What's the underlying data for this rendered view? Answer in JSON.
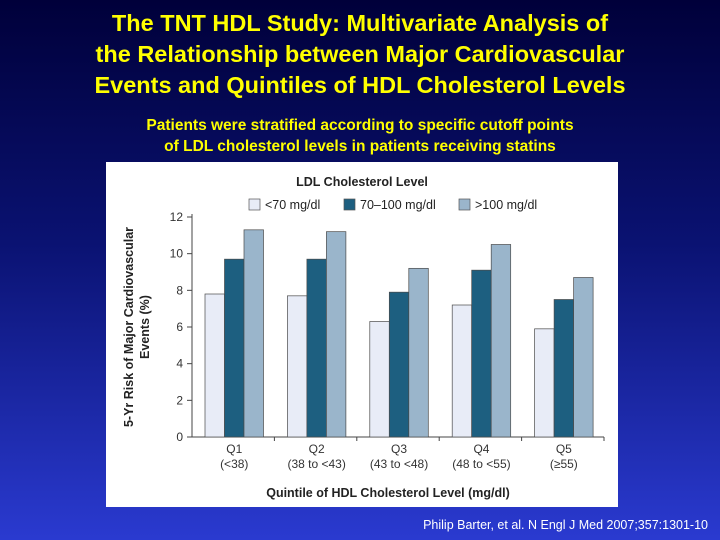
{
  "title_lines": [
    "The TNT HDL Study: Multivariate Analysis of",
    "the Relationship between Major Cardiovascular",
    "Events and Quintiles of HDL Cholesterol Levels"
  ],
  "subtitle_lines": [
    "Patients were stratified according to specific cutoff points",
    "of LDL cholesterol levels in patients receiving statins"
  ],
  "citation": "Philip Barter, et al. N Engl J Med 2007;357:1301-10",
  "colors": {
    "title": "#ffff00",
    "series": [
      "#e8ecf7",
      "#1d5f80",
      "#9ab5cb"
    ]
  },
  "chart_data": {
    "type": "bar",
    "legend_title": "LDL Cholesterol Level",
    "legend_position": "top",
    "categories": [
      "Q1",
      "Q2",
      "Q3",
      "Q4",
      "Q5"
    ],
    "category_sublabels": [
      "(<38)",
      "(38 to <43)",
      "(43 to <48)",
      "(48 to <55)",
      "(≥55)"
    ],
    "series": [
      {
        "name": "<70 mg/dl",
        "values": [
          7.8,
          7.7,
          6.3,
          7.2,
          5.9
        ]
      },
      {
        "name": "70–100 mg/dl",
        "values": [
          9.7,
          9.7,
          7.9,
          9.1,
          7.5
        ]
      },
      {
        "name": ">100 mg/dl",
        "values": [
          11.3,
          11.2,
          9.2,
          10.5,
          8.7
        ]
      }
    ],
    "xlabel": "Quintile of HDL Cholesterol Level (mg/dl)",
    "ylabel_lines": [
      "5-Yr Risk of Major Cardiovascular",
      "Events (%)"
    ],
    "ylim": [
      0,
      12
    ],
    "yticks": [
      0,
      2,
      4,
      6,
      8,
      10,
      12
    ],
    "grid": false
  }
}
